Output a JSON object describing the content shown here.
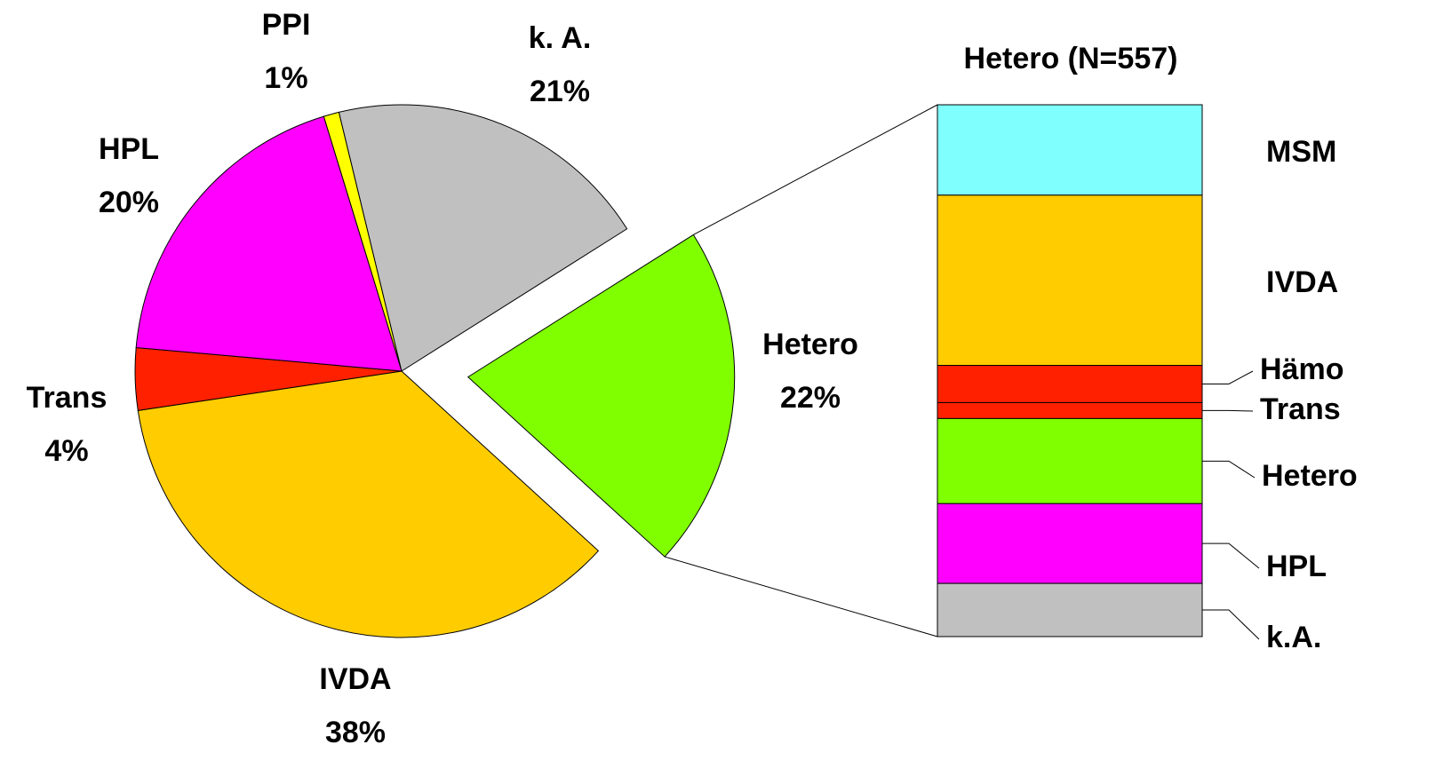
{
  "chart_data": [
    {
      "type": "pie",
      "categories": [
        "PPI",
        "k. A.",
        "Hetero",
        "IVDA",
        "Trans",
        "HPL"
      ],
      "values": [
        1,
        21,
        22,
        38,
        4,
        20
      ],
      "value_labels": [
        "1%",
        "21%",
        "22%",
        "38%",
        "4%",
        "20%"
      ],
      "colors": [
        "#ffff00",
        "#c0c0c0",
        "#80ff00",
        "#ffcc00",
        "#ff2000",
        "#ff00ff"
      ]
    },
    {
      "type": "bar",
      "title": "Hetero (N=557)",
      "categories": [
        "MSM",
        "IVDA",
        "Hämo",
        "Trans",
        "Hetero",
        "HPL",
        "k.A."
      ],
      "values": [
        17,
        32,
        7,
        3,
        16,
        15,
        10
      ],
      "colors": [
        "#80ffff",
        "#ffcc00",
        "#ff2000",
        "#ff2000",
        "#80ff00",
        "#ff00ff",
        "#c0c0c0"
      ],
      "stacked": true
    }
  ]
}
